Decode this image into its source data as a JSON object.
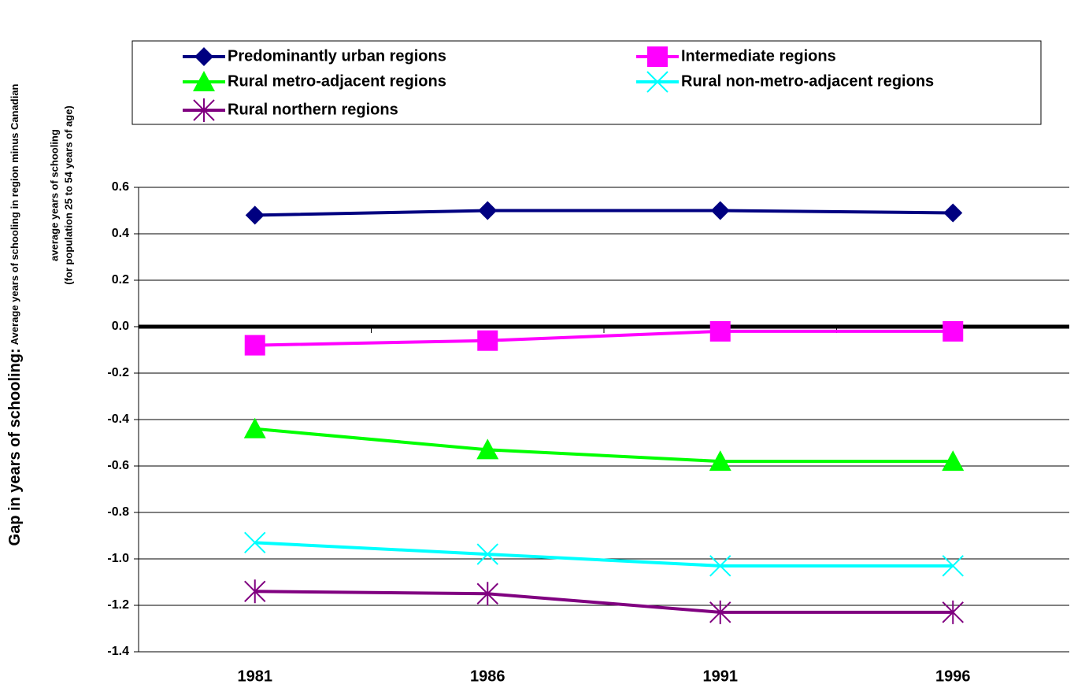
{
  "chart_data": {
    "type": "line",
    "ylabel": [
      "Gap in years of schooling:",
      "Average years of schooling in region minus Canadian",
      "average years of schooling",
      "(for population 25 to 54 years of age)"
    ],
    "categories": [
      "1981",
      "1986",
      "1991",
      "1996"
    ],
    "series": [
      {
        "name": "Predominantly urban regions",
        "color": "#000080",
        "marker": "diamond",
        "values": [
          0.48,
          0.5,
          0.5,
          0.49
        ]
      },
      {
        "name": "Intermediate regions",
        "color": "#ff00ff",
        "marker": "square",
        "values": [
          -0.08,
          -0.06,
          -0.02,
          -0.02
        ]
      },
      {
        "name": "Rural metro-adjacent regions",
        "color": "#00ff00",
        "marker": "triangle",
        "values": [
          -0.44,
          -0.53,
          -0.58,
          -0.58
        ]
      },
      {
        "name": "Rural non-metro-adjacent regions",
        "color": "#00ffff",
        "marker": "x",
        "values": [
          -0.93,
          -0.98,
          -1.03,
          -1.03
        ]
      },
      {
        "name": "Rural northern regions",
        "color": "#800080",
        "marker": "star",
        "values": [
          -1.14,
          -1.15,
          -1.23,
          -1.23
        ]
      }
    ],
    "ylim": [
      -1.4,
      0.6
    ],
    "yticks": [
      0.6,
      0.4,
      0.2,
      {
        "value": 0,
        "label": "0.0"
      },
      -0.2,
      -0.4,
      -0.6,
      -0.8,
      {
        "value": -1,
        "label": "-1.0"
      },
      -1.2,
      -1.4
    ],
    "grid": true
  }
}
